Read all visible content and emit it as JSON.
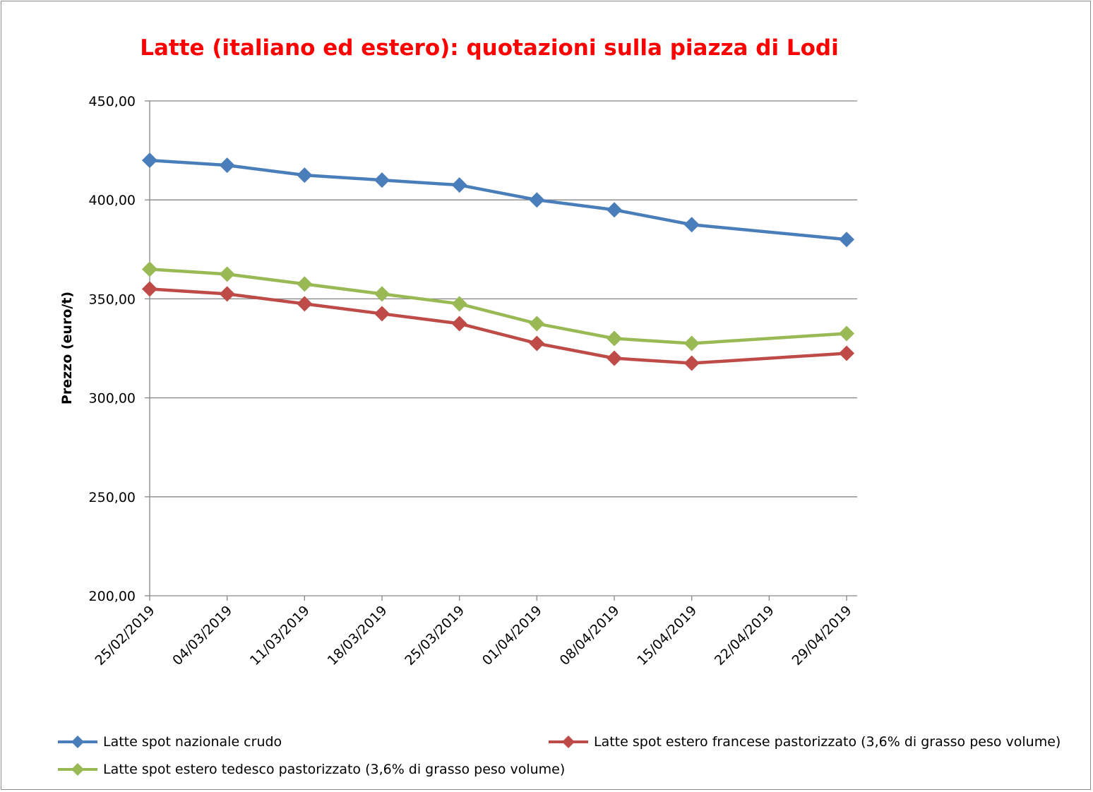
{
  "chart_data": {
    "type": "line",
    "title": "Latte (italiano ed estero): quotazioni sulla piazza di Lodi",
    "xlabel": "",
    "ylabel": "Prezzo (euro/t)",
    "x_tick_labels": [
      "25/02/2019",
      "04/03/2019",
      "11/03/2019",
      "18/03/2019",
      "25/03/2019",
      "01/04/2019",
      "08/04/2019",
      "15/04/2019",
      "22/04/2019",
      "29/04/2019"
    ],
    "y_tick_labels": [
      "200,00",
      "250,00",
      "300,00",
      "350,00",
      "400,00",
      "450,00"
    ],
    "ylim": [
      200,
      450
    ],
    "y_ticks": [
      200,
      250,
      300,
      350,
      400,
      450
    ],
    "grid": true,
    "legend_position": "bottom",
    "series": [
      {
        "name": "Latte spot nazionale crudo",
        "color": "#4a7ebb",
        "x": [
          "25/02/2019",
          "04/03/2019",
          "11/03/2019",
          "18/03/2019",
          "25/03/2019",
          "01/04/2019",
          "08/04/2019",
          "15/04/2019",
          "29/04/2019"
        ],
        "values": [
          420,
          417.5,
          412.5,
          410,
          407.5,
          400,
          395,
          387.5,
          380
        ]
      },
      {
        "name": "Latte spot estero francese pastorizzato (3,6% di grasso peso volume)",
        "color": "#be4b48",
        "x": [
          "25/02/2019",
          "04/03/2019",
          "11/03/2019",
          "18/03/2019",
          "25/03/2019",
          "01/04/2019",
          "08/04/2019",
          "15/04/2019",
          "29/04/2019"
        ],
        "values": [
          355,
          352.5,
          347.5,
          342.5,
          337.5,
          327.5,
          320,
          317.5,
          322.5
        ]
      },
      {
        "name": "Latte spot estero tedesco pastorizzato (3,6% di grasso peso volume)",
        "color": "#98b954",
        "x": [
          "25/02/2019",
          "04/03/2019",
          "11/03/2019",
          "18/03/2019",
          "25/03/2019",
          "01/04/2019",
          "08/04/2019",
          "15/04/2019",
          "29/04/2019"
        ],
        "values": [
          365,
          362.5,
          357.5,
          352.5,
          347.5,
          337.5,
          330,
          327.5,
          332.5
        ]
      }
    ]
  }
}
